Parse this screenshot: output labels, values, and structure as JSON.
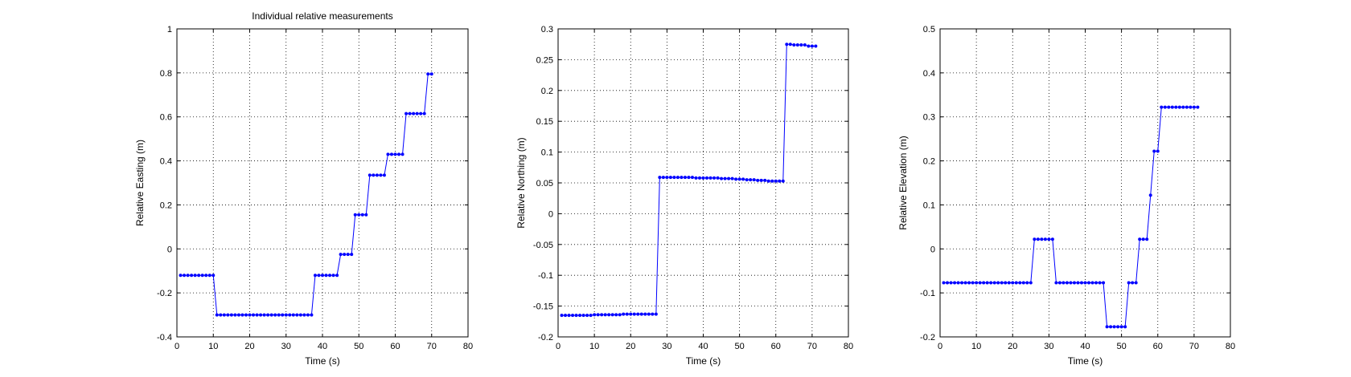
{
  "figure": {
    "title": "Individual relative measurements"
  },
  "chart_data": [
    {
      "type": "line",
      "title": "Individual relative measurements",
      "xlabel": "Time (s)",
      "ylabel": "Relative Easting (m)",
      "xlim": [
        0,
        80
      ],
      "ylim": [
        -0.4,
        1
      ],
      "xticks": [
        0,
        10,
        20,
        30,
        40,
        50,
        60,
        70,
        80
      ],
      "xtick_labels": [
        "0",
        "10",
        "20",
        "30",
        "40",
        "50",
        "60",
        "70",
        "80"
      ],
      "yticks": [
        -0.4,
        -0.2,
        0,
        0.2,
        0.4,
        0.6,
        0.8,
        1
      ],
      "ytick_labels": [
        "-0.4",
        "-0.2",
        "0",
        "0.2",
        "0.4",
        "0.6",
        "0.8",
        "1"
      ],
      "grid": true,
      "series": [
        {
          "color": "#0000ff",
          "x": [
            1,
            2,
            3,
            4,
            5,
            6,
            7,
            8,
            9,
            10,
            11,
            12,
            13,
            14,
            15,
            16,
            17,
            18,
            19,
            20,
            21,
            22,
            23,
            24,
            25,
            26,
            27,
            28,
            29,
            30,
            31,
            32,
            33,
            34,
            35,
            36,
            37,
            38,
            39,
            40,
            41,
            42,
            43,
            44,
            45,
            46,
            47,
            48,
            49,
            50,
            51,
            52,
            53,
            54,
            55,
            56,
            57,
            58,
            59,
            60,
            61,
            62,
            63,
            64,
            65,
            66,
            67,
            68,
            69,
            70
          ],
          "y": [
            -0.12,
            -0.12,
            -0.12,
            -0.12,
            -0.12,
            -0.12,
            -0.12,
            -0.12,
            -0.12,
            -0.12,
            -0.3,
            -0.3,
            -0.3,
            -0.3,
            -0.3,
            -0.3,
            -0.3,
            -0.3,
            -0.3,
            -0.3,
            -0.3,
            -0.3,
            -0.3,
            -0.3,
            -0.3,
            -0.3,
            -0.3,
            -0.3,
            -0.3,
            -0.3,
            -0.3,
            -0.3,
            -0.3,
            -0.3,
            -0.3,
            -0.3,
            -0.3,
            -0.12,
            -0.12,
            -0.12,
            -0.12,
            -0.12,
            -0.12,
            -0.12,
            -0.025,
            -0.025,
            -0.025,
            -0.025,
            0.155,
            0.155,
            0.155,
            0.155,
            0.335,
            0.335,
            0.335,
            0.335,
            0.335,
            0.43,
            0.43,
            0.43,
            0.43,
            0.43,
            0.615,
            0.615,
            0.615,
            0.615,
            0.615,
            0.615,
            0.795,
            0.795
          ]
        }
      ]
    },
    {
      "type": "line",
      "title": "",
      "xlabel": "Time (s)",
      "ylabel": "Relative Northing (m)",
      "xlim": [
        0,
        80
      ],
      "ylim": [
        -0.2,
        0.3
      ],
      "xticks": [
        0,
        10,
        20,
        30,
        40,
        50,
        60,
        70,
        80
      ],
      "xtick_labels": [
        "0",
        "10",
        "20",
        "30",
        "40",
        "50",
        "60",
        "70",
        "80"
      ],
      "yticks": [
        -0.2,
        -0.15,
        -0.1,
        -0.05,
        0,
        0.05,
        0.1,
        0.15,
        0.2,
        0.25,
        0.3
      ],
      "ytick_labels": [
        "-0.2",
        "-0.15",
        "-0.1",
        "-0.05",
        "0",
        "0.05",
        "0.1",
        "0.15",
        "0.2",
        "0.25",
        "0.3"
      ],
      "grid": true,
      "series": [
        {
          "color": "#0000ff",
          "x": [
            1,
            2,
            3,
            4,
            5,
            6,
            7,
            8,
            9,
            10,
            11,
            12,
            13,
            14,
            15,
            16,
            17,
            18,
            19,
            20,
            21,
            22,
            23,
            24,
            25,
            26,
            27,
            28,
            29,
            30,
            31,
            32,
            33,
            34,
            35,
            36,
            37,
            38,
            39,
            40,
            41,
            42,
            43,
            44,
            45,
            46,
            47,
            48,
            49,
            50,
            51,
            52,
            53,
            54,
            55,
            56,
            57,
            58,
            59,
            60,
            61,
            62,
            63,
            64,
            65,
            66,
            67,
            68,
            69,
            70,
            71
          ],
          "y": [
            -0.165,
            -0.165,
            -0.165,
            -0.165,
            -0.165,
            -0.165,
            -0.165,
            -0.165,
            -0.165,
            -0.164,
            -0.164,
            -0.164,
            -0.164,
            -0.164,
            -0.164,
            -0.164,
            -0.164,
            -0.163,
            -0.163,
            -0.163,
            -0.163,
            -0.163,
            -0.163,
            -0.163,
            -0.163,
            -0.163,
            -0.163,
            0.059,
            0.059,
            0.059,
            0.059,
            0.059,
            0.059,
            0.059,
            0.059,
            0.059,
            0.059,
            0.058,
            0.058,
            0.058,
            0.058,
            0.058,
            0.058,
            0.058,
            0.057,
            0.057,
            0.057,
            0.057,
            0.056,
            0.056,
            0.056,
            0.055,
            0.055,
            0.055,
            0.054,
            0.054,
            0.054,
            0.053,
            0.053,
            0.053,
            0.053,
            0.053,
            0.275,
            0.275,
            0.274,
            0.274,
            0.274,
            0.274,
            0.272,
            0.272,
            0.272
          ]
        }
      ]
    },
    {
      "type": "line",
      "title": "",
      "xlabel": "Time (s)",
      "ylabel": "Relative Elevation (m)",
      "xlim": [
        0,
        80
      ],
      "ylim": [
        -0.2,
        0.5
      ],
      "xticks": [
        0,
        10,
        20,
        30,
        40,
        50,
        60,
        70,
        80
      ],
      "xtick_labels": [
        "0",
        "10",
        "20",
        "30",
        "40",
        "50",
        "60",
        "70",
        "80"
      ],
      "yticks": [
        -0.2,
        -0.1,
        0,
        0.1,
        0.2,
        0.3,
        0.4,
        0.5
      ],
      "ytick_labels": [
        "-0.2",
        "-0.1",
        "0",
        "0.1",
        "0.2",
        "0.3",
        "0.4",
        "0.5"
      ],
      "grid": true,
      "series": [
        {
          "color": "#0000ff",
          "x": [
            1,
            2,
            3,
            4,
            5,
            6,
            7,
            8,
            9,
            10,
            11,
            12,
            13,
            14,
            15,
            16,
            17,
            18,
            19,
            20,
            21,
            22,
            23,
            24,
            25,
            26,
            27,
            28,
            29,
            30,
            31,
            32,
            33,
            34,
            35,
            36,
            37,
            38,
            39,
            40,
            41,
            42,
            43,
            44,
            45,
            46,
            47,
            48,
            49,
            50,
            51,
            52,
            53,
            54,
            55,
            56,
            57,
            58,
            59,
            60,
            61,
            62,
            63,
            64,
            65,
            66,
            67,
            68,
            69,
            70,
            71
          ],
          "y": [
            -0.077,
            -0.077,
            -0.077,
            -0.077,
            -0.077,
            -0.077,
            -0.077,
            -0.077,
            -0.077,
            -0.077,
            -0.077,
            -0.077,
            -0.077,
            -0.077,
            -0.077,
            -0.077,
            -0.077,
            -0.077,
            -0.077,
            -0.077,
            -0.077,
            -0.077,
            -0.077,
            -0.077,
            -0.077,
            0.022,
            0.022,
            0.022,
            0.022,
            0.022,
            0.022,
            -0.077,
            -0.077,
            -0.077,
            -0.077,
            -0.077,
            -0.077,
            -0.077,
            -0.077,
            -0.077,
            -0.077,
            -0.077,
            -0.077,
            -0.077,
            -0.077,
            -0.177,
            -0.177,
            -0.177,
            -0.177,
            -0.177,
            -0.177,
            -0.077,
            -0.077,
            -0.077,
            0.022,
            0.022,
            0.022,
            0.122,
            0.222,
            0.222,
            0.322,
            0.322,
            0.322,
            0.322,
            0.322,
            0.322,
            0.322,
            0.322,
            0.322,
            0.322,
            0.322
          ]
        }
      ]
    }
  ]
}
